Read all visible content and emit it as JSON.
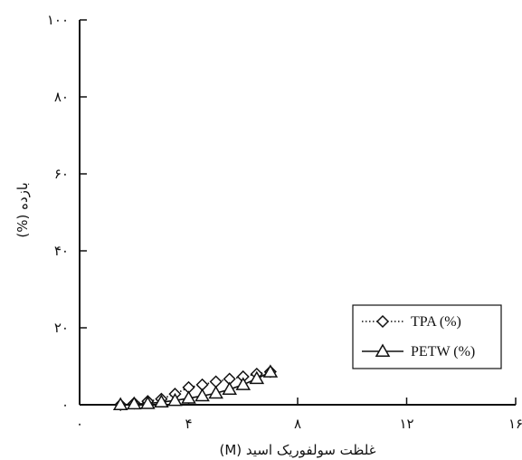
{
  "chart_data": {
    "type": "line",
    "xlabel": "غلظت سولفوریک اسید (M)",
    "ylabel": "بازده (%)",
    "xlim": [
      0,
      16
    ],
    "ylim": [
      0,
      100
    ],
    "x_ticks": [
      0,
      4,
      8,
      12,
      16
    ],
    "x_tick_labels": [
      "۰",
      "۴",
      "۸",
      "۱۲",
      "۱۶"
    ],
    "y_ticks": [
      0,
      20,
      40,
      60,
      80,
      100
    ],
    "y_tick_labels": [
      "۰",
      "۲۰",
      "۴۰",
      "۶۰",
      "۸۰",
      "۱۰۰"
    ],
    "grid": false,
    "legend_position": "bottom-right",
    "series": [
      {
        "name": "TPA (%)",
        "marker": "diamond",
        "line_style": "dotted",
        "color": "#111111",
        "x": [
          1.5,
          2,
          2.5,
          3,
          3.5,
          4,
          4.5,
          5,
          5.5,
          6,
          6.5,
          7
        ],
        "values": [
          0,
          0.4,
          0.9,
          1.5,
          2.8,
          4.5,
          5.2,
          6.0,
          6.7,
          7.3,
          8.0,
          8.6
        ]
      },
      {
        "name": "PETW (%)",
        "marker": "triangle",
        "line_style": "solid",
        "color": "#111111",
        "x": [
          1.5,
          2,
          2.5,
          3,
          3.5,
          4,
          4.5,
          5,
          5.5,
          6,
          6.5,
          7
        ],
        "values": [
          0,
          0.2,
          0.3,
          0.7,
          1.1,
          1.7,
          2.3,
          3.0,
          4.0,
          5.2,
          6.8,
          8.5
        ]
      }
    ]
  }
}
